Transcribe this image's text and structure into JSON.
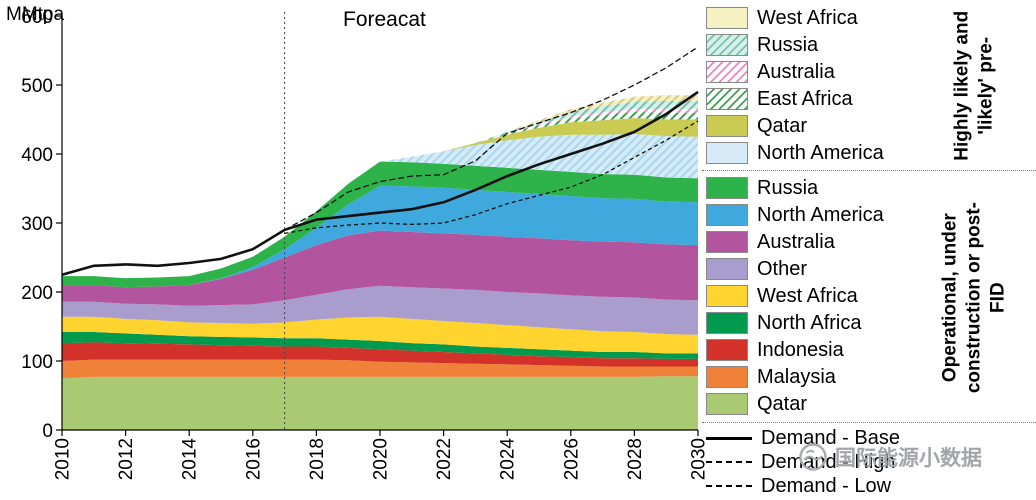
{
  "chart_data": {
    "type": "area",
    "ylabel": "MMtpa",
    "forecast_annotation": "Foreacat",
    "forecast_x": 2017,
    "x": [
      2010,
      2011,
      2012,
      2013,
      2014,
      2015,
      2016,
      2017,
      2018,
      2019,
      2020,
      2021,
      2022,
      2023,
      2024,
      2025,
      2026,
      2027,
      2028,
      2029,
      2030
    ],
    "xticks": [
      2010,
      2012,
      2014,
      2016,
      2018,
      2020,
      2022,
      2024,
      2026,
      2028,
      2030
    ],
    "ylim": [
      0,
      600
    ],
    "yticks": [
      0,
      100,
      200,
      300,
      400,
      500,
      600
    ],
    "stack_series": [
      {
        "name": "Qatar",
        "group": "operational",
        "color": "#a9c972",
        "hatch": null,
        "values": [
          75,
          77,
          77,
          77,
          77,
          77,
          77,
          77,
          77,
          77,
          77,
          77,
          77,
          77,
          77,
          77,
          77,
          77,
          77,
          78,
          78
        ]
      },
      {
        "name": "Malaysia",
        "group": "operational",
        "color": "#f08138",
        "hatch": null,
        "values": [
          25,
          25,
          25,
          25,
          25,
          25,
          25,
          25,
          25,
          24,
          22,
          21,
          20,
          19,
          18,
          17,
          16,
          15,
          15,
          14,
          14
        ]
      },
      {
        "name": "Indonesia",
        "group": "operational",
        "color": "#d2322a",
        "hatch": null,
        "values": [
          26,
          25,
          24,
          23,
          22,
          21,
          20,
          19,
          19,
          18,
          18,
          17,
          16,
          15,
          14,
          13,
          13,
          12,
          12,
          11,
          11
        ]
      },
      {
        "name": "North Africa",
        "group": "operational",
        "color": "#009a4e",
        "hatch": null,
        "values": [
          16,
          15,
          14,
          13,
          12,
          12,
          12,
          12,
          12,
          12,
          12,
          11,
          11,
          10,
          10,
          10,
          9,
          9,
          9,
          8,
          8
        ]
      },
      {
        "name": "West Africa",
        "group": "operational",
        "color": "#ffd42e",
        "hatch": null,
        "values": [
          22,
          22,
          21,
          21,
          20,
          20,
          20,
          23,
          27,
          32,
          35,
          35,
          34,
          34,
          33,
          32,
          31,
          30,
          29,
          28,
          27
        ]
      },
      {
        "name": "Other",
        "group": "operational",
        "color": "#a89dcc",
        "hatch": null,
        "values": [
          22,
          22,
          22,
          23,
          24,
          26,
          28,
          32,
          36,
          41,
          45,
          46,
          47,
          48,
          48,
          49,
          49,
          50,
          50,
          50,
          50
        ]
      },
      {
        "name": "Australia",
        "group": "operational",
        "color": "#b3549e",
        "hatch": null,
        "values": [
          24,
          24,
          24,
          26,
          30,
          38,
          50,
          62,
          72,
          78,
          80,
          80,
          80,
          80,
          80,
          80,
          80,
          80,
          80,
          80,
          80
        ]
      },
      {
        "name": "North America",
        "group": "operational",
        "color": "#3fa8dc",
        "hatch": null,
        "values": [
          0,
          0,
          0,
          0,
          0,
          1,
          4,
          12,
          25,
          45,
          65,
          66,
          66,
          65,
          65,
          64,
          64,
          63,
          63,
          62,
          62
        ]
      },
      {
        "name": "Russia",
        "group": "operational",
        "color": "#2eb34b",
        "hatch": null,
        "values": [
          13,
          13,
          13,
          13,
          13,
          14,
          15,
          18,
          24,
          30,
          35,
          35,
          35,
          35,
          35,
          35,
          35,
          35,
          35,
          35,
          35
        ]
      },
      {
        "name": "North America (pre-FID)",
        "group": "pre_fid",
        "color": "#d6ebf7",
        "hatch": "#a9d7ee",
        "values": [
          0,
          0,
          0,
          0,
          0,
          0,
          0,
          0,
          0,
          0,
          0,
          8,
          18,
          30,
          40,
          48,
          54,
          57,
          59,
          60,
          60
        ]
      },
      {
        "name": "Qatar (pre-FID)",
        "group": "pre_fid",
        "color": "#c9cb52",
        "hatch": null,
        "values": [
          0,
          0,
          0,
          0,
          0,
          0,
          0,
          0,
          0,
          0,
          0,
          0,
          0,
          3,
          8,
          13,
          18,
          21,
          23,
          24,
          25
        ]
      },
      {
        "name": "East Africa (pre-FID)",
        "group": "pre_fid",
        "color": "#ffffff",
        "hatch": "#3fa052",
        "values": [
          0,
          0,
          0,
          0,
          0,
          0,
          0,
          0,
          0,
          0,
          0,
          0,
          0,
          0,
          2,
          4,
          6,
          8,
          9,
          10,
          10
        ]
      },
      {
        "name": "Australia (pre-FID)",
        "group": "pre_fid",
        "color": "#ffffff",
        "hatch": "#ea86c4",
        "values": [
          0,
          0,
          0,
          0,
          0,
          0,
          0,
          0,
          0,
          0,
          0,
          0,
          0,
          0,
          0,
          1,
          2,
          3,
          4,
          5,
          5
        ]
      },
      {
        "name": "Russia (pre-FID)",
        "group": "pre_fid",
        "color": "#d9efe9",
        "hatch": "#74c3b0",
        "values": [
          0,
          0,
          0,
          0,
          0,
          0,
          0,
          0,
          0,
          0,
          0,
          0,
          0,
          0,
          2,
          4,
          7,
          9,
          11,
          12,
          12
        ]
      },
      {
        "name": "West Africa (pre-FID)",
        "group": "pre_fid",
        "color": "#f6f1c3",
        "hatch": "#d6cc8f",
        "values": [
          0,
          0,
          0,
          0,
          0,
          0,
          0,
          0,
          0,
          0,
          0,
          0,
          0,
          0,
          0,
          2,
          4,
          5,
          7,
          8,
          8
        ]
      }
    ],
    "line_series": [
      {
        "name": "Demand - Base",
        "dash": null,
        "width": 2.6,
        "values": [
          225,
          238,
          240,
          238,
          242,
          248,
          262,
          290,
          305,
          310,
          315,
          320,
          330,
          348,
          368,
          385,
          400,
          415,
          432,
          458,
          490
        ]
      },
      {
        "name": "Demand - High",
        "dash": "6 3",
        "width": 1.3,
        "values": [
          null,
          null,
          null,
          null,
          null,
          null,
          null,
          290,
          315,
          345,
          360,
          368,
          370,
          390,
          430,
          445,
          460,
          478,
          500,
          525,
          555
        ]
      },
      {
        "name": "Demand - Low",
        "dash": "4 3",
        "width": 1.3,
        "values": [
          null,
          null,
          null,
          null,
          null,
          null,
          null,
          285,
          293,
          297,
          300,
          298,
          300,
          312,
          328,
          340,
          352,
          370,
          395,
          420,
          448
        ]
      }
    ]
  },
  "legend": {
    "pre_fid": {
      "group_label": "Highly likely and 'likely' pre-",
      "items": [
        {
          "label": "West Africa",
          "color": "#f6f1c3",
          "hatch": null
        },
        {
          "label": "Russia",
          "color": "#d9efe9",
          "hatch": "#74c3b0"
        },
        {
          "label": "Australia",
          "color": "#ffffff",
          "hatch": "#ea86c4"
        },
        {
          "label": "East Africa",
          "color": "#ffffff",
          "hatch": "#3fa052"
        },
        {
          "label": "Qatar",
          "color": "#c9cb52",
          "hatch": null
        },
        {
          "label": "North America",
          "color": "#d6ebf7",
          "hatch": null
        }
      ]
    },
    "operational": {
      "group_label": "Operational, under construction or post-FID",
      "items": [
        {
          "label": "Russia",
          "color": "#2eb34b",
          "hatch": null
        },
        {
          "label": "North America",
          "color": "#3fa8dc",
          "hatch": null
        },
        {
          "label": "Australia",
          "color": "#b3549e",
          "hatch": null
        },
        {
          "label": "Other",
          "color": "#a89dcc",
          "hatch": null
        },
        {
          "label": "West Africa",
          "color": "#ffd42e",
          "hatch": null
        },
        {
          "label": "North Africa",
          "color": "#009a4e",
          "hatch": null
        },
        {
          "label": "Indonesia",
          "color": "#d2322a",
          "hatch": null
        },
        {
          "label": "Malaysia",
          "color": "#f08138",
          "hatch": null
        },
        {
          "label": "Qatar",
          "color": "#a9c972",
          "hatch": null
        }
      ]
    },
    "lines": [
      {
        "label": "Demand - Base",
        "style": "solid"
      },
      {
        "label": "Demand - High",
        "style": "dashed"
      },
      {
        "label": "Demand - Low",
        "style": "dashed"
      }
    ]
  },
  "watermark": {
    "text": "国际能源小数据"
  }
}
